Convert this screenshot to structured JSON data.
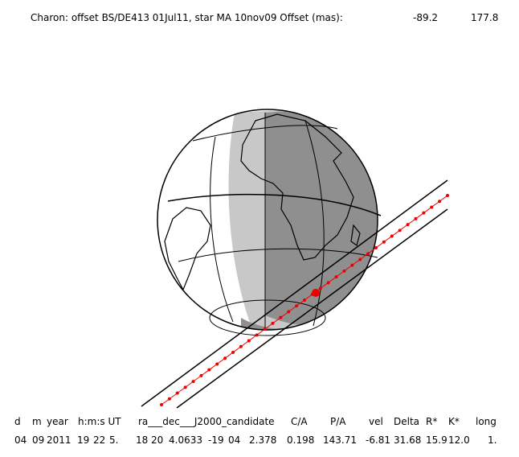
{
  "header": {
    "title": "Charon: offset BS/DE413 01Jul11, star MA 10nov09  Offset (mas):",
    "offset_1": "-89.2",
    "offset_2": "177.8"
  },
  "table": {
    "columns": [
      "d",
      "m",
      "year",
      "h:m:s UT",
      "ra___dec___J2000_candidate",
      "C/A",
      "P/A",
      "vel",
      "Delta",
      "R*",
      "K*",
      "long"
    ],
    "rows": [
      [
        "04",
        "09",
        "2011",
        "19",
        "22",
        "5.",
        "18",
        "20",
        "4.0633",
        "-19",
        "04",
        "2.378",
        "0.198",
        "143.71",
        "-6.81",
        "31.68",
        "15.9",
        "12.0",
        "1."
      ]
    ]
  }
}
